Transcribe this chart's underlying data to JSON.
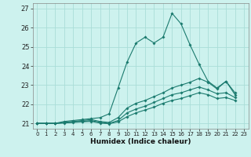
{
  "xlabel": "Humidex (Indice chaleur)",
  "bg_color": "#cdf2ee",
  "line_color": "#1a7a6e",
  "grid_color": "#aaddd8",
  "xlim": [
    -0.5,
    23.5
  ],
  "ylim": [
    20.72,
    27.28
  ],
  "yticks": [
    21,
    22,
    23,
    24,
    25,
    26,
    27
  ],
  "xticks": [
    0,
    1,
    2,
    3,
    4,
    5,
    6,
    7,
    8,
    9,
    10,
    11,
    12,
    13,
    14,
    15,
    16,
    17,
    18,
    19,
    20,
    21,
    22,
    23
  ],
  "line1_y": [
    21.0,
    21.0,
    21.0,
    21.1,
    21.15,
    21.2,
    21.25,
    21.3,
    21.5,
    22.85,
    24.2,
    25.2,
    25.5,
    25.2,
    25.5,
    26.75,
    26.2,
    25.1,
    24.1,
    23.2,
    22.85,
    23.2,
    22.5
  ],
  "line2_y": [
    21.0,
    21.0,
    21.0,
    21.05,
    21.1,
    21.15,
    21.2,
    21.1,
    21.05,
    21.3,
    21.8,
    22.05,
    22.2,
    22.4,
    22.6,
    22.85,
    23.0,
    23.15,
    23.35,
    23.15,
    22.8,
    23.2,
    22.6
  ],
  "line3_y": [
    21.0,
    21.0,
    21.0,
    21.03,
    21.07,
    21.1,
    21.15,
    21.05,
    21.0,
    21.15,
    21.55,
    21.75,
    21.9,
    22.1,
    22.3,
    22.5,
    22.6,
    22.75,
    22.9,
    22.75,
    22.55,
    22.6,
    22.35
  ],
  "line4_y": [
    21.0,
    21.0,
    21.0,
    21.02,
    21.05,
    21.08,
    21.1,
    21.02,
    20.98,
    21.08,
    21.35,
    21.55,
    21.7,
    21.85,
    22.05,
    22.2,
    22.3,
    22.45,
    22.6,
    22.5,
    22.3,
    22.35,
    22.2
  ]
}
